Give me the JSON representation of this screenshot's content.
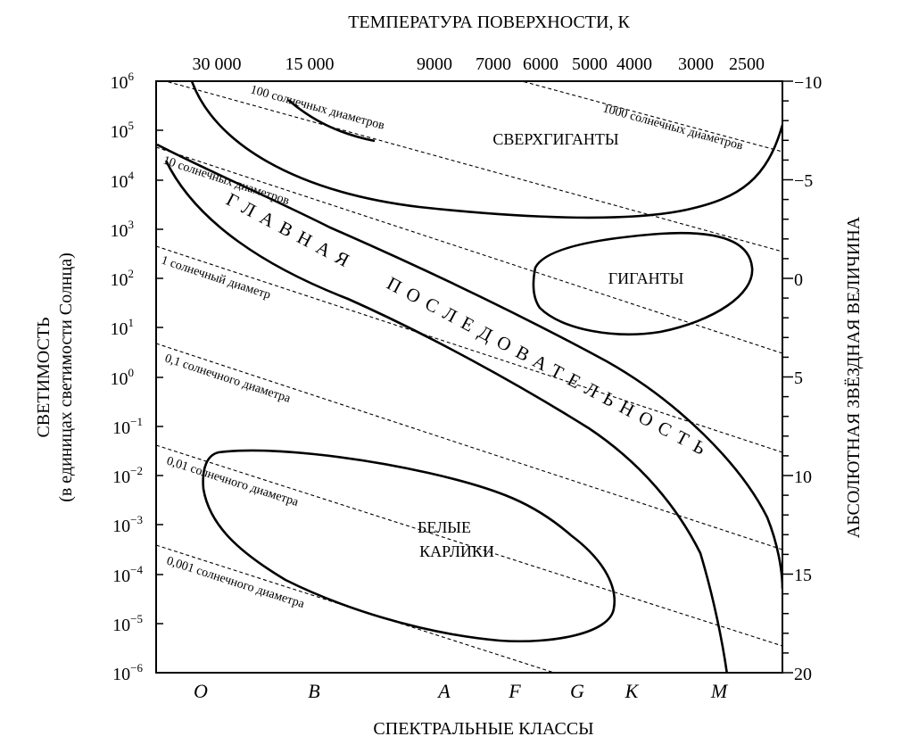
{
  "chart_data": {
    "type": "diagram",
    "title_top": "ТЕМПЕРАТУРА ПОВЕРХНОСТИ, К",
    "xlabel": "СПЕКТРАЛЬНЫЕ КЛАССЫ",
    "ylabel_main": "СВЕТИМОСТЬ",
    "ylabel_sub": "(в единицах светимости Солнца)",
    "ylabel_right": "АБСОЛЮТНАЯ ЗВЁЗДНАЯ ВЕЛИЧИНА",
    "luminosity_scale": "log",
    "luminosity_range": [
      -6,
      6
    ],
    "magnitude_range": [
      20,
      -10
    ],
    "luminosity_ticks": [
      {
        "exp": 6,
        "label": "10",
        "sup": "6"
      },
      {
        "exp": 5,
        "label": "10",
        "sup": "5"
      },
      {
        "exp": 4,
        "label": "10",
        "sup": "4"
      },
      {
        "exp": 3,
        "label": "10",
        "sup": "3"
      },
      {
        "exp": 2,
        "label": "10",
        "sup": "2"
      },
      {
        "exp": 1,
        "label": "10",
        "sup": "1"
      },
      {
        "exp": 0,
        "label": "10",
        "sup": "0"
      },
      {
        "exp": -1,
        "label": "10",
        "sup": "−1"
      },
      {
        "exp": -2,
        "label": "10",
        "sup": "−2"
      },
      {
        "exp": -3,
        "label": "10",
        "sup": "−3"
      },
      {
        "exp": -4,
        "label": "10",
        "sup": "−4"
      },
      {
        "exp": -5,
        "label": "10",
        "sup": "−5"
      },
      {
        "exp": -6,
        "label": "10",
        "sup": "−6"
      }
    ],
    "magnitude_ticks": [
      {
        "value": -10,
        "label": "−10"
      },
      {
        "value": -5,
        "label": "−5"
      },
      {
        "value": 0,
        "label": "0"
      },
      {
        "value": 5,
        "label": "5"
      },
      {
        "value": 10,
        "label": "10"
      },
      {
        "value": 15,
        "label": "15"
      },
      {
        "value": 20,
        "label": "20"
      }
    ],
    "temperature_ticks": [
      "30 000",
      "15 000",
      "9000",
      "7000",
      "6000",
      "5000",
      "4000",
      "3000",
      "2500"
    ],
    "spectral_classes": [
      "O",
      "B",
      "A",
      "F",
      "G",
      "K",
      "M"
    ],
    "iso_radius_lines": [
      {
        "label": "1000 солнечных диаметров",
        "log_l_left": 10.0
      },
      {
        "label": "100 солнечных диаметров",
        "log_l_left": 8.0
      },
      {
        "label": "10 солнечных диаметров",
        "log_l_left": 5.9
      },
      {
        "label": "1 солнечный диаметр",
        "log_l_left": 3.8
      },
      {
        "label": "0,1 солнечного диаметра",
        "log_l_left": 1.8
      },
      {
        "label": "0,01 солнечного диаметра",
        "log_l_left": -0.3
      },
      {
        "label": "0,001 солнечного диаметра",
        "log_l_left": -2.4
      }
    ],
    "regions": [
      {
        "name": "СВЕРХГИГАНТЫ"
      },
      {
        "name": "ГИГАНТЫ"
      },
      {
        "name": "ГЛАВНАЯ ПОСЛЕДОВАТЕЛЬНОСТЬ",
        "part1": "ГЛАВНАЯ",
        "part2": "ПОСЛЕДОВАТЕЛЬНОСТЬ"
      },
      {
        "name": "БЕЛЫЕ КАРЛИКИ",
        "line1": "БЕЛЫЕ",
        "line2": "КАРЛИКИ"
      }
    ],
    "grid": false
  }
}
